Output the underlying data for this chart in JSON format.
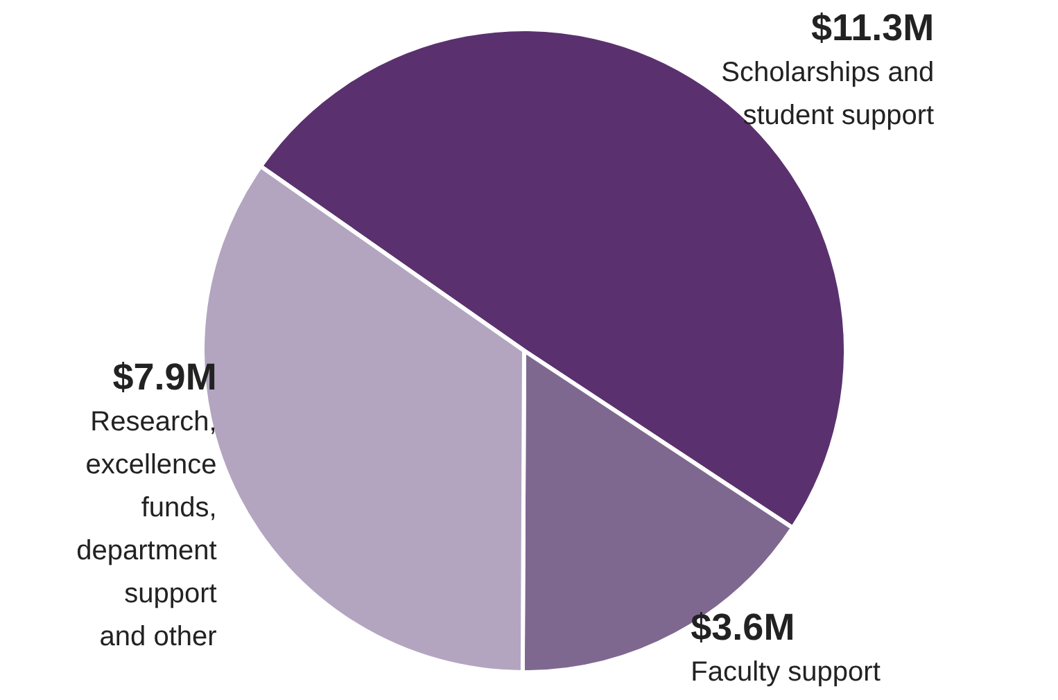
{
  "chart_data": {
    "type": "pie",
    "categories": [
      "Scholarships and student support",
      "Faculty support",
      "Research, excellence funds, department support and other"
    ],
    "values": [
      11.3,
      3.6,
      7.9
    ],
    "colors": [
      "#5a316e",
      "#7f6890",
      "#b3a5c0"
    ],
    "value_labels": [
      "$11.3M",
      "$3.6M",
      "$7.9M"
    ],
    "legend": false
  }
}
